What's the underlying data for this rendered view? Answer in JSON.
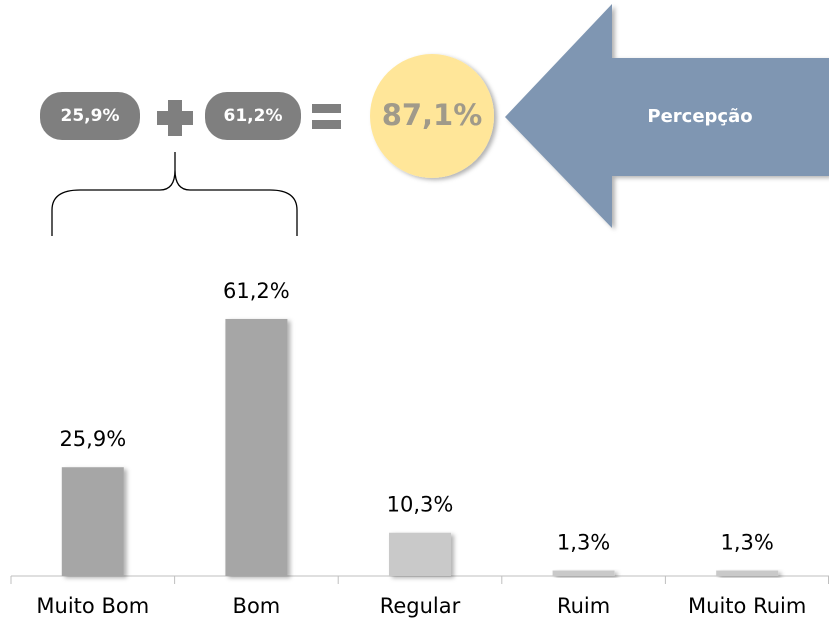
{
  "chart_data": {
    "type": "bar",
    "categories": [
      "Muito Bom",
      "Bom",
      "Regular",
      "Ruim",
      "Muito Ruim"
    ],
    "values": [
      25.9,
      61.2,
      10.3,
      1.3,
      1.3
    ],
    "value_labels": [
      "25,9%",
      "61,2%",
      "10,3%",
      "1,3%",
      "1,3%"
    ],
    "colors": [
      "#a6a6a6",
      "#a6a6a6",
      "#c9c9c9",
      "#c9c9c9",
      "#c9c9c9"
    ],
    "annotations": [
      "25,9%",
      "61,2%",
      "87,1%",
      "Percepção"
    ]
  }
}
